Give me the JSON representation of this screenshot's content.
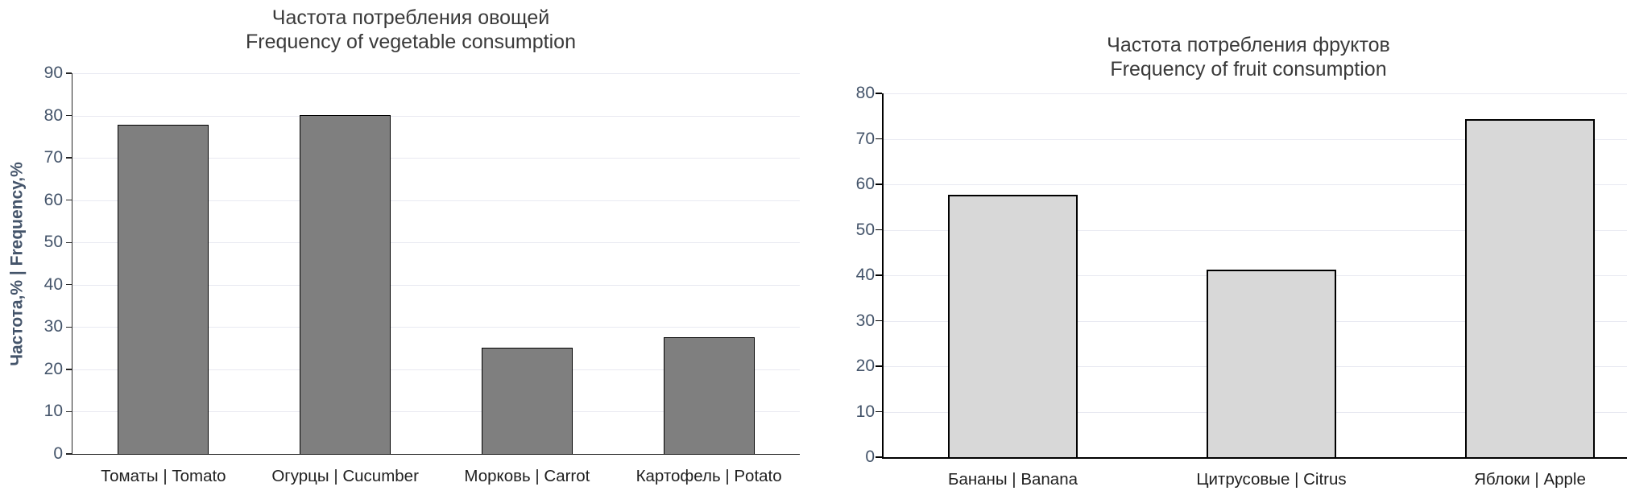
{
  "page": {
    "background": "#ffffff",
    "gridline_color": "#e8e9f1",
    "tick_label_color": "#44546a",
    "category_label_color": "#1f1f1f",
    "title_color": "#3a3a3a",
    "ylabel_color": "#44546a"
  },
  "chart_data": [
    {
      "type": "bar",
      "title_ru": "Частота потребления овощей",
      "title_en": "Frequency of vegetable consumption",
      "ylabel": "Частота,% | Frequency,%",
      "categories": [
        "Томаты | Tomato",
        "Огурцы | Cucumber",
        "Морковь | Carrot",
        "Картофель | Potato"
      ],
      "values": [
        77.9,
        80.1,
        25.2,
        27.6
      ],
      "ylim": [
        0,
        90
      ],
      "ytick_step": 10,
      "grid": true,
      "legend": "none",
      "bar_fill": "#7f7f7f",
      "bar_border": "#000000",
      "axis_color": "#262626"
    },
    {
      "type": "bar",
      "title_ru": "Частота потребления фруктов",
      "title_en": "Frequency of fruit consumption",
      "ylabel": "",
      "categories": [
        "Бананы | Banana",
        "Цитрусовые | Citrus",
        "Яблоки | Apple"
      ],
      "values": [
        57.7,
        41.2,
        74.4
      ],
      "ylim": [
        0,
        80
      ],
      "ytick_step": 10,
      "grid": true,
      "legend": "none",
      "bar_fill": "#d8d8d8",
      "bar_border": "#000000",
      "axis_color": "#000000"
    }
  ]
}
